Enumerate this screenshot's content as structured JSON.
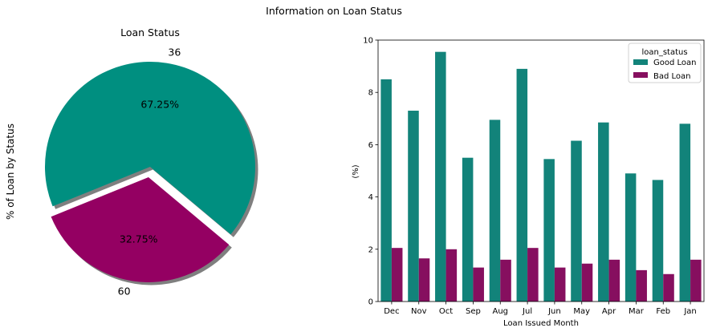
{
  "figure_title": "Information on Loan Status",
  "chart_data": [
    {
      "type": "pie",
      "title": "Loan Status",
      "ylabel": "% of Loan by Status",
      "slices": [
        {
          "label": "36",
          "value": 67.25,
          "pct_label": "67.25%",
          "color": "#008f80",
          "exploded": false
        },
        {
          "label": "60",
          "value": 32.75,
          "pct_label": "32.75%",
          "color": "#940062",
          "exploded": true
        }
      ],
      "shadow": true
    },
    {
      "type": "bar",
      "title": "",
      "xlabel": "Loan Issued Month",
      "ylabel": "(%)",
      "ylim": [
        0,
        10
      ],
      "yticks": [
        0,
        2,
        4,
        6,
        8,
        10
      ],
      "categories": [
        "Dec",
        "Nov",
        "Oct",
        "Sep",
        "Aug",
        "Jul",
        "Jun",
        "May",
        "Apr",
        "Mar",
        "Feb",
        "Jan"
      ],
      "legend": {
        "title": "loan_status",
        "placement": "top-right"
      },
      "grid": false,
      "series": [
        {
          "name": "Good Loan",
          "color": "#12837a",
          "values": [
            8.5,
            7.3,
            9.55,
            5.5,
            6.95,
            8.9,
            5.45,
            6.15,
            6.85,
            4.9,
            4.65,
            6.8
          ]
        },
        {
          "name": "Bad Loan",
          "color": "#860f5f",
          "values": [
            2.05,
            1.65,
            2.0,
            1.3,
            1.6,
            2.05,
            1.3,
            1.45,
            1.6,
            1.2,
            1.05,
            1.6
          ]
        }
      ]
    }
  ]
}
